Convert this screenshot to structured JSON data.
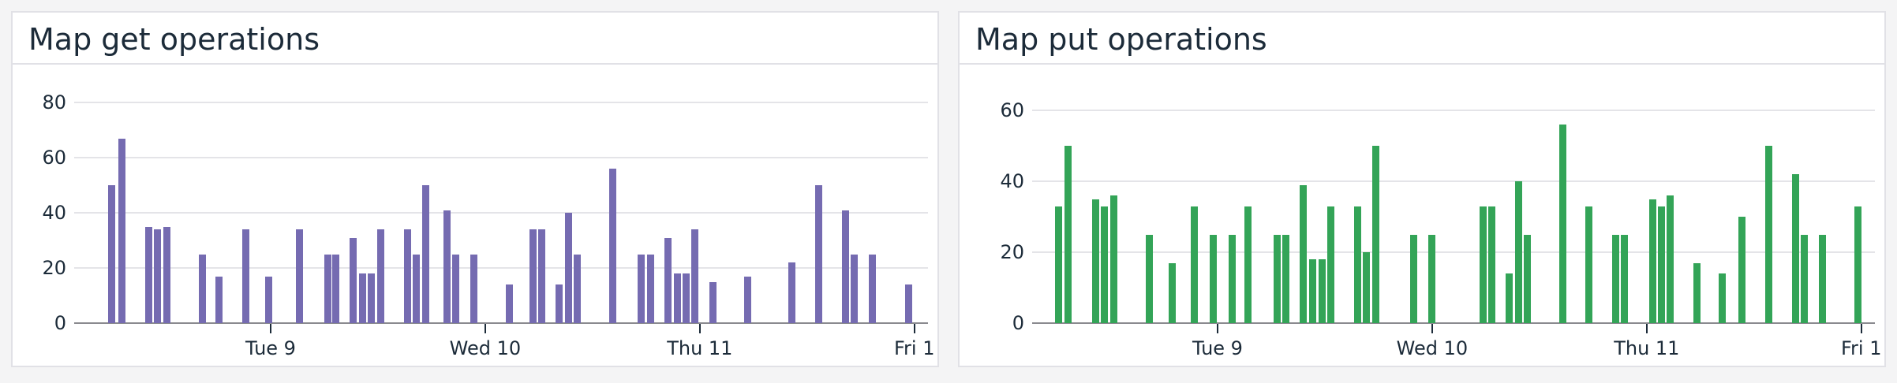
{
  "panels": [
    {
      "title": "Map get operations",
      "color": "#756bb1"
    },
    {
      "title": "Map put operations",
      "color": "#33a457"
    }
  ],
  "chart_data": [
    {
      "type": "bar",
      "title": "Map get operations",
      "xlabel": "",
      "ylabel": "",
      "ylim": [
        0,
        80
      ],
      "yticks": [
        0,
        20,
        40,
        60,
        80
      ],
      "grid": true,
      "legend": null,
      "color": "#756bb1",
      "x_unit": "hours relative to Tue 9 00:00",
      "xlim": [
        -22,
        73.5
      ],
      "xticks": [
        {
          "label": "Tue 9",
          "t": 0
        },
        {
          "label": "Wed 10",
          "t": 24
        },
        {
          "label": "Thu 11",
          "t": 48
        },
        {
          "label": "Fri 1",
          "t": 72
        }
      ],
      "points": [
        {
          "t": -17.7,
          "v": 50
        },
        {
          "t": -16.6,
          "v": 67
        },
        {
          "t": -13.6,
          "v": 35
        },
        {
          "t": -12.6,
          "v": 34
        },
        {
          "t": -11.6,
          "v": 35
        },
        {
          "t": -7.6,
          "v": 25
        },
        {
          "t": -5.7,
          "v": 17
        },
        {
          "t": -2.7,
          "v": 34
        },
        {
          "t": -0.2,
          "v": 17
        },
        {
          "t": 3.3,
          "v": 34
        },
        {
          "t": 6.4,
          "v": 25
        },
        {
          "t": 7.3,
          "v": 25
        },
        {
          "t": 9.3,
          "v": 31
        },
        {
          "t": 10.3,
          "v": 18
        },
        {
          "t": 11.3,
          "v": 18
        },
        {
          "t": 12.4,
          "v": 34
        },
        {
          "t": 15.4,
          "v": 34
        },
        {
          "t": 16.3,
          "v": 25
        },
        {
          "t": 17.4,
          "v": 50
        },
        {
          "t": 19.8,
          "v": 41
        },
        {
          "t": 20.7,
          "v": 25
        },
        {
          "t": 22.8,
          "v": 25
        },
        {
          "t": 26.7,
          "v": 14
        },
        {
          "t": 29.4,
          "v": 34
        },
        {
          "t": 30.4,
          "v": 34
        },
        {
          "t": 32.3,
          "v": 14
        },
        {
          "t": 33.4,
          "v": 40
        },
        {
          "t": 34.3,
          "v": 25
        },
        {
          "t": 38.3,
          "v": 56
        },
        {
          "t": 41.5,
          "v": 25
        },
        {
          "t": 42.5,
          "v": 25
        },
        {
          "t": 44.5,
          "v": 31
        },
        {
          "t": 45.5,
          "v": 18
        },
        {
          "t": 46.5,
          "v": 18
        },
        {
          "t": 47.5,
          "v": 34
        },
        {
          "t": 49.5,
          "v": 15
        },
        {
          "t": 53.4,
          "v": 17
        },
        {
          "t": 58.3,
          "v": 22
        },
        {
          "t": 61.3,
          "v": 50
        },
        {
          "t": 64.3,
          "v": 41
        },
        {
          "t": 65.3,
          "v": 25
        },
        {
          "t": 67.3,
          "v": 25
        },
        {
          "t": 71.4,
          "v": 14
        }
      ]
    },
    {
      "type": "bar",
      "title": "Map put operations",
      "xlabel": "",
      "ylabel": "",
      "ylim": [
        0,
        60
      ],
      "yticks": [
        0,
        20,
        40,
        60
      ],
      "grid": true,
      "legend": null,
      "color": "#33a457",
      "x_unit": "hours relative to Tue 9 00:00",
      "xlim": [
        -20.7,
        73.5
      ],
      "xticks": [
        {
          "label": "Tue 9",
          "t": 0
        },
        {
          "label": "Wed 10",
          "t": 24
        },
        {
          "label": "Thu 11",
          "t": 48
        },
        {
          "label": "Fri 1",
          "t": 72
        }
      ],
      "points": [
        {
          "t": -17.7,
          "v": 33
        },
        {
          "t": -16.7,
          "v": 50
        },
        {
          "t": -13.6,
          "v": 35
        },
        {
          "t": -12.6,
          "v": 33
        },
        {
          "t": -11.6,
          "v": 36
        },
        {
          "t": -7.6,
          "v": 25
        },
        {
          "t": -5.0,
          "v": 17
        },
        {
          "t": -2.6,
          "v": 33
        },
        {
          "t": -0.4,
          "v": 25
        },
        {
          "t": 1.7,
          "v": 25
        },
        {
          "t": 3.4,
          "v": 33
        },
        {
          "t": 6.7,
          "v": 25
        },
        {
          "t": 7.7,
          "v": 25
        },
        {
          "t": 9.6,
          "v": 39
        },
        {
          "t": 10.7,
          "v": 18
        },
        {
          "t": 11.7,
          "v": 18
        },
        {
          "t": 12.7,
          "v": 33
        },
        {
          "t": 15.7,
          "v": 33
        },
        {
          "t": 16.7,
          "v": 20
        },
        {
          "t": 17.7,
          "v": 50
        },
        {
          "t": 22.0,
          "v": 25
        },
        {
          "t": 24.0,
          "v": 25
        },
        {
          "t": 29.7,
          "v": 33
        },
        {
          "t": 30.7,
          "v": 33
        },
        {
          "t": 32.7,
          "v": 14
        },
        {
          "t": 33.7,
          "v": 40
        },
        {
          "t": 34.7,
          "v": 25
        },
        {
          "t": 38.7,
          "v": 56
        },
        {
          "t": 41.6,
          "v": 33
        },
        {
          "t": 44.6,
          "v": 25
        },
        {
          "t": 45.5,
          "v": 25
        },
        {
          "t": 48.7,
          "v": 35
        },
        {
          "t": 49.7,
          "v": 33
        },
        {
          "t": 50.7,
          "v": 36
        },
        {
          "t": 53.7,
          "v": 17
        },
        {
          "t": 56.5,
          "v": 14
        },
        {
          "t": 58.7,
          "v": 30
        },
        {
          "t": 61.7,
          "v": 50
        },
        {
          "t": 64.7,
          "v": 42
        },
        {
          "t": 65.7,
          "v": 25
        },
        {
          "t": 67.7,
          "v": 25
        },
        {
          "t": 71.7,
          "v": 33
        }
      ]
    }
  ]
}
